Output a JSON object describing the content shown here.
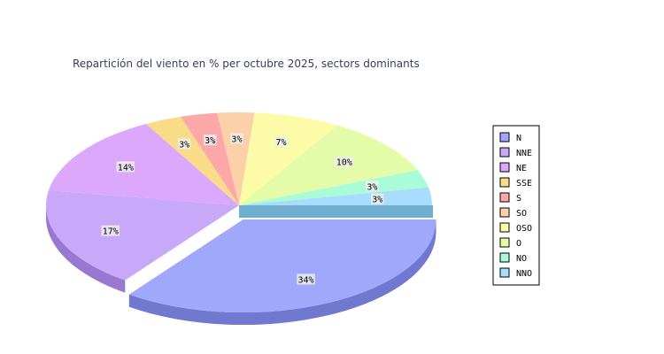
{
  "chart_data": {
    "type": "pie",
    "title": "Repartición del viento en % per octubre 2025, sectors dominants",
    "slices": [
      {
        "name": "N",
        "value": 34,
        "label": "34%",
        "color": "#a0a8fc",
        "side": "#7078d0"
      },
      {
        "name": "NNE",
        "value": 17,
        "label": "17%",
        "color": "#c8a8f8",
        "side": "#9878d0"
      },
      {
        "name": "NE",
        "value": 14,
        "label": "14%",
        "color": "#dca8fc",
        "side": "#b080d4"
      },
      {
        "name": "SSE",
        "value": 3,
        "label": "3%",
        "color": "#f8dc88",
        "side": "#d0b460"
      },
      {
        "name": "S",
        "value": 3,
        "label": "3%",
        "color": "#fca8a8",
        "side": "#d08080"
      },
      {
        "name": "SO",
        "value": 3,
        "label": "3%",
        "color": "#fcd0a8",
        "side": "#d4a880"
      },
      {
        "name": "OSO",
        "value": 7,
        "label": "7%",
        "color": "#fcfca8",
        "side": "#d4d480"
      },
      {
        "name": "O",
        "value": 10,
        "label": "10%",
        "color": "#e4fca8",
        "side": "#bcd480"
      },
      {
        "name": "NO",
        "value": 3,
        "label": "3%",
        "color": "#a8fcd8",
        "side": "#80d4b0"
      },
      {
        "name": "NNO",
        "value": 3,
        "label": "3%",
        "color": "#a8dcfc",
        "side": "#70aed0"
      }
    ],
    "exploded": "N",
    "legend_position": "right",
    "style": "3d"
  }
}
